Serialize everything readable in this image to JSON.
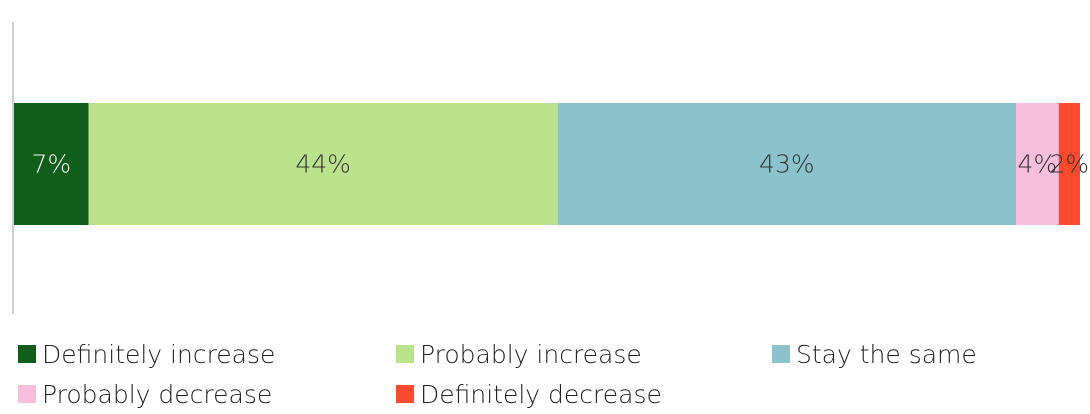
{
  "chart_data": {
    "type": "bar",
    "orientation": "horizontal",
    "stacked": true,
    "categories": [
      ""
    ],
    "series": [
      {
        "name": "Definitely increase",
        "values": [
          7
        ],
        "label": "7%",
        "color": "#115e1a",
        "label_color": "#ffffff"
      },
      {
        "name": "Probably increase",
        "values": [
          44
        ],
        "label": "44%",
        "color": "#bbe28c",
        "label_color": "#333333"
      },
      {
        "name": "Stay the same",
        "values": [
          43
        ],
        "label": "43%",
        "color": "#8cc2cb",
        "label_color": "#333333"
      },
      {
        "name": "Probably decrease",
        "values": [
          4
        ],
        "label": "4%",
        "color": "#f7bfdd",
        "label_color": "#333333"
      },
      {
        "name": "Definitely decrease",
        "values": [
          2
        ],
        "label": "2%",
        "color": "#fb4a2e",
        "label_color": "#333333"
      }
    ],
    "xlim": [
      0,
      100
    ],
    "grid": false,
    "legend_position": "bottom"
  }
}
